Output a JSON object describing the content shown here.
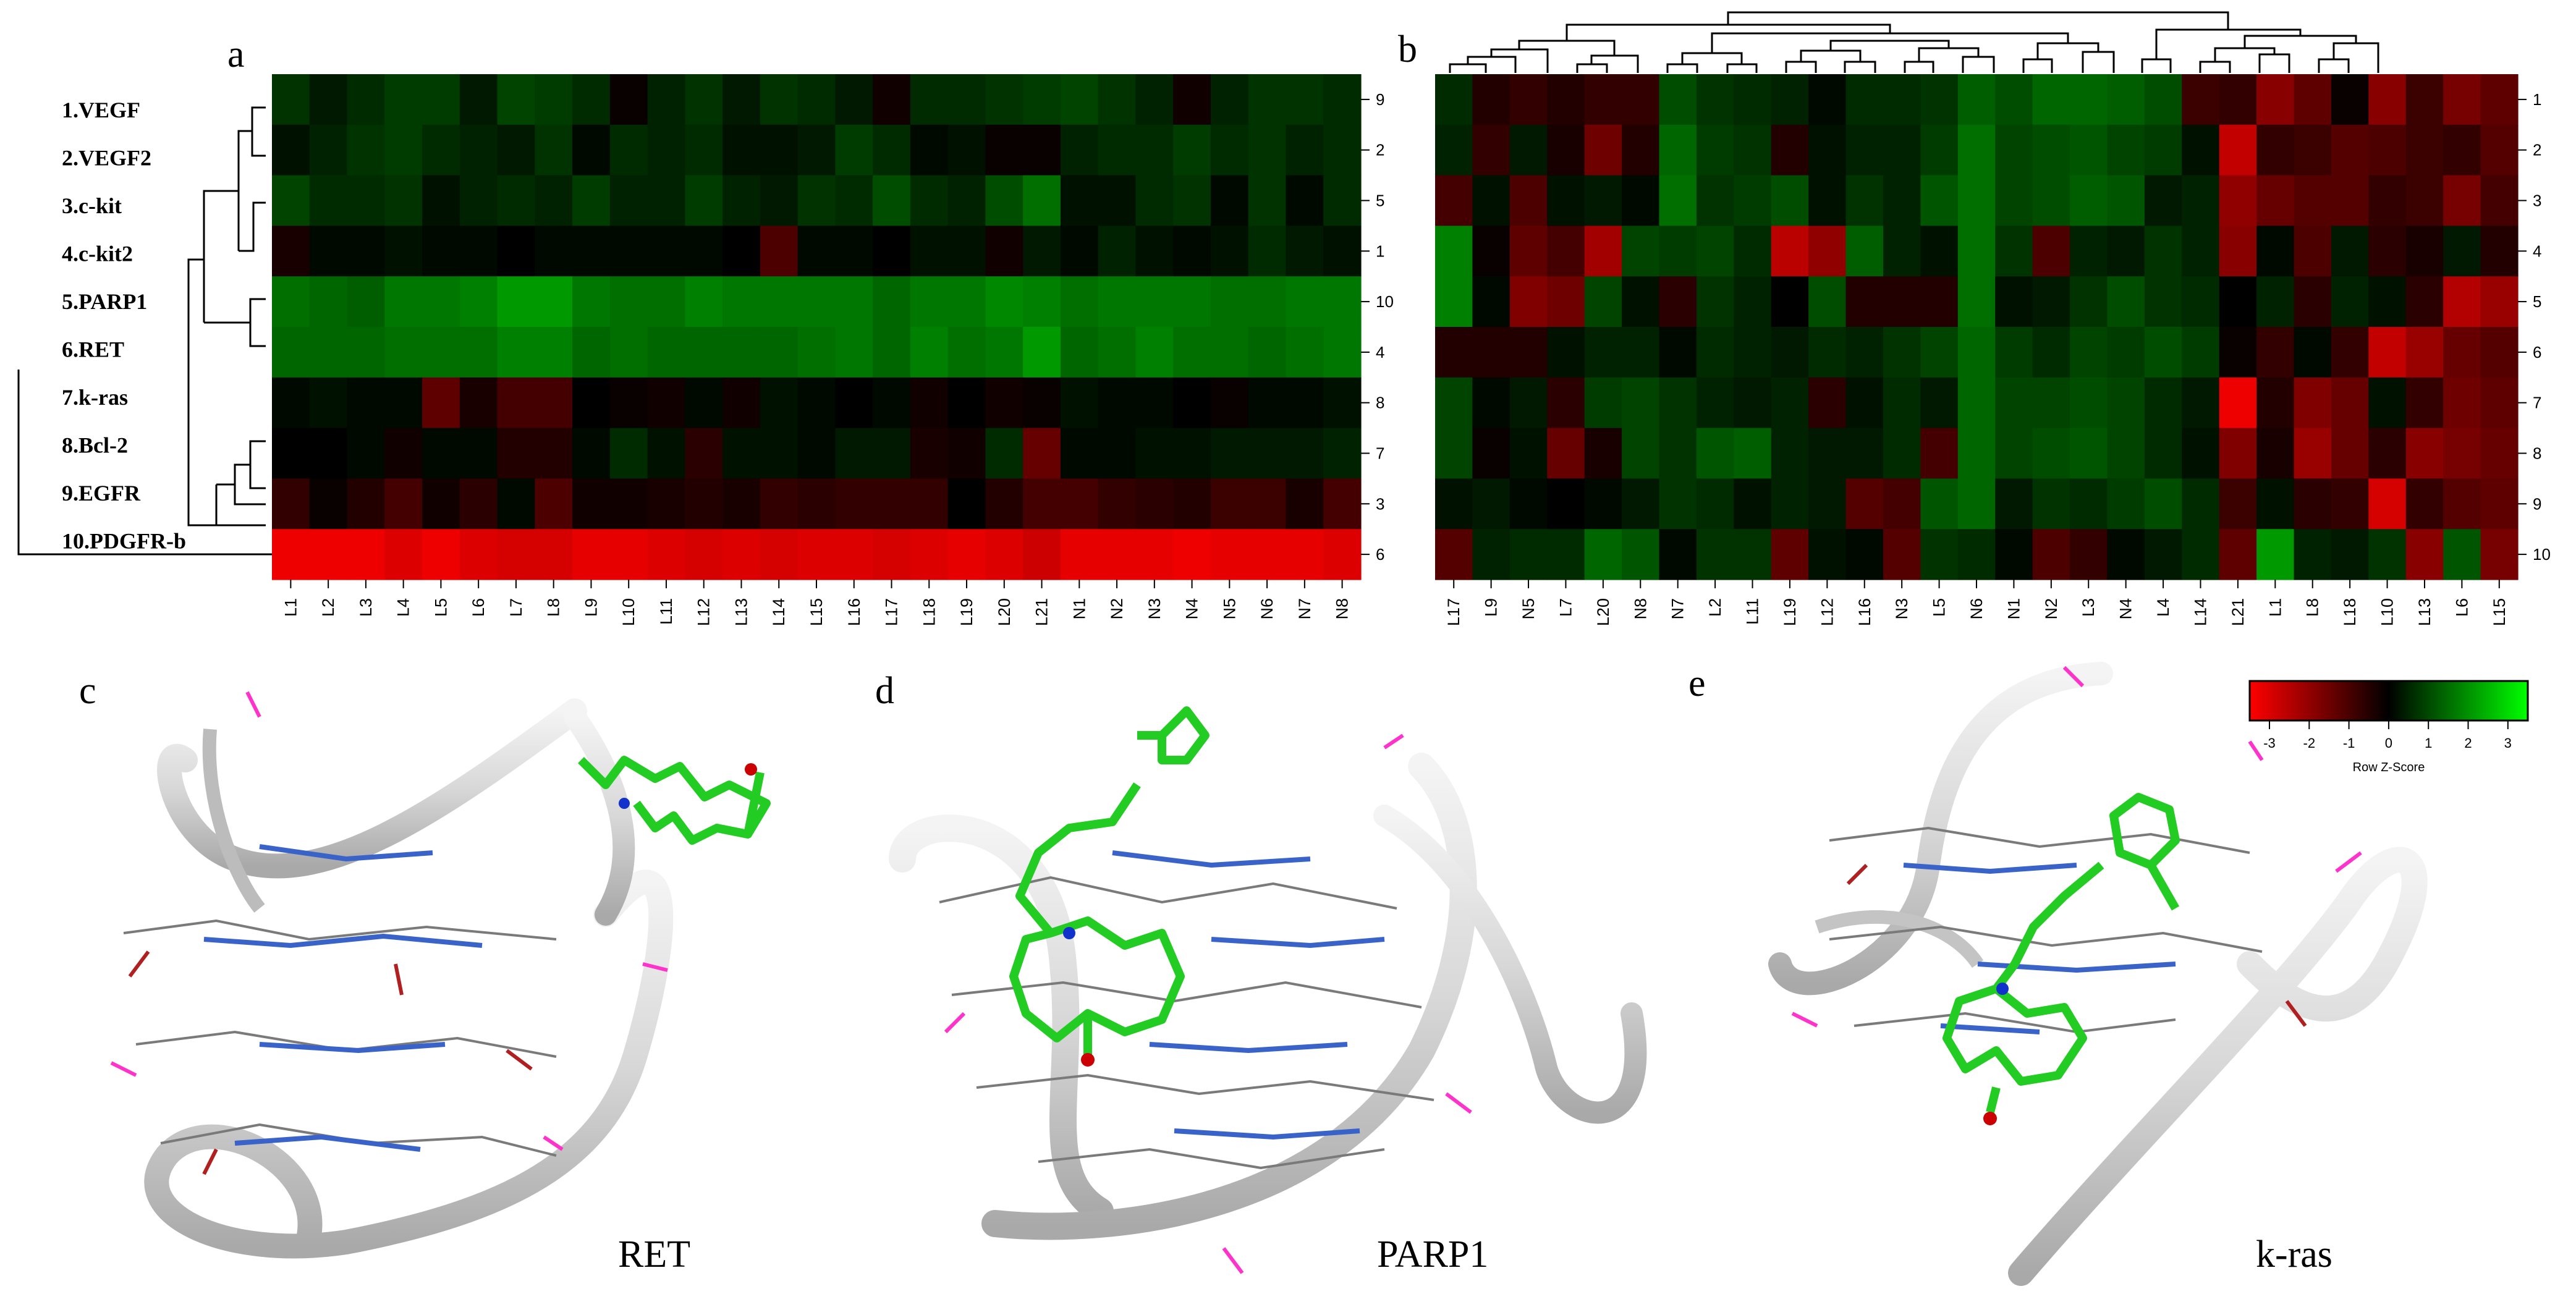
{
  "panels": {
    "a": {
      "letter": "a",
      "labels": [
        "1.VEGF",
        "2.VEGF2",
        "3.c-kit",
        "4.c-kit2",
        "5.PARP1",
        "6.RET",
        "7.k-ras",
        "8.Bcl-2",
        "9.EGFR",
        "10.PDGFR-b"
      ],
      "row_ids": [
        "9",
        "2",
        "5",
        "1",
        "10",
        "4",
        "8",
        "7",
        "3",
        "6"
      ],
      "columns": [
        "L1",
        "L2",
        "L3",
        "L4",
        "L5",
        "L6",
        "L7",
        "L8",
        "L9",
        "L10",
        "L11",
        "L12",
        "L13",
        "L14",
        "L15",
        "L16",
        "L17",
        "L18",
        "L19",
        "L20",
        "L21",
        "N1",
        "N2",
        "N3",
        "N4",
        "N5",
        "N6",
        "N7",
        "N8"
      ],
      "heat": [
        [
          0.6,
          0.3,
          0.5,
          0.7,
          0.7,
          0.3,
          0.8,
          0.7,
          0.5,
          -0.1,
          0.4,
          0.6,
          0.3,
          0.6,
          0.5,
          0.3,
          -0.2,
          0.5,
          0.5,
          0.6,
          0.7,
          0.8,
          0.6,
          0.4,
          -0.2,
          0.4,
          0.6,
          0.6,
          0.5
        ],
        [
          0.2,
          0.4,
          0.6,
          0.7,
          0.5,
          0.4,
          0.3,
          0.6,
          0.1,
          0.5,
          0.4,
          0.5,
          0.2,
          0.2,
          0.3,
          0.7,
          0.5,
          0.1,
          0.2,
          -0.1,
          -0.1,
          0.4,
          0.5,
          0.5,
          0.7,
          0.5,
          0.6,
          0.4,
          0.5
        ],
        [
          0.8,
          0.5,
          0.5,
          0.6,
          0.2,
          0.4,
          0.5,
          0.4,
          0.7,
          0.4,
          0.4,
          0.7,
          0.4,
          0.3,
          0.6,
          0.5,
          0.9,
          0.5,
          0.4,
          0.9,
          1.3,
          0.2,
          0.2,
          0.5,
          0.6,
          0.1,
          0.6,
          0.1,
          0.5
        ],
        [
          -0.3,
          0.1,
          0.1,
          0.2,
          0.1,
          0.1,
          0.0,
          0.1,
          0.1,
          0.1,
          0.1,
          0.1,
          0.0,
          -0.9,
          0.1,
          0.1,
          0.0,
          0.2,
          0.2,
          -0.2,
          0.3,
          0.1,
          0.4,
          0.2,
          0.1,
          0.2,
          0.5,
          0.3,
          0.2
        ],
        [
          1.3,
          1.2,
          1.1,
          1.4,
          1.4,
          1.5,
          1.8,
          1.8,
          1.4,
          1.3,
          1.3,
          1.5,
          1.4,
          1.4,
          1.4,
          1.4,
          1.2,
          1.4,
          1.4,
          1.6,
          1.5,
          1.3,
          1.4,
          1.4,
          1.4,
          1.3,
          1.3,
          1.4,
          1.4
        ],
        [
          1.2,
          1.2,
          1.2,
          1.3,
          1.3,
          1.3,
          1.5,
          1.5,
          1.2,
          1.3,
          1.2,
          1.2,
          1.2,
          1.2,
          1.3,
          1.4,
          1.2,
          1.5,
          1.3,
          1.4,
          1.8,
          1.2,
          1.3,
          1.5,
          1.3,
          1.3,
          1.2,
          1.3,
          1.4
        ],
        [
          0.1,
          0.2,
          0.1,
          0.1,
          -1.1,
          -0.3,
          -0.8,
          -0.8,
          0.0,
          -0.1,
          -0.2,
          0.1,
          -0.2,
          0.2,
          0.1,
          0.0,
          0.1,
          -0.2,
          0.0,
          -0.2,
          -0.1,
          0.2,
          0.1,
          0.1,
          0.0,
          -0.1,
          0.1,
          0.1,
          0.2
        ],
        [
          0.0,
          0.0,
          0.1,
          -0.2,
          0.1,
          0.1,
          -0.4,
          -0.4,
          0.1,
          0.5,
          0.2,
          -0.5,
          0.2,
          0.2,
          0.1,
          0.3,
          0.3,
          -0.3,
          -0.2,
          0.5,
          -1.2,
          0.1,
          0.1,
          0.2,
          0.2,
          0.3,
          0.3,
          0.3,
          0.4
        ],
        [
          -0.6,
          -0.1,
          -0.4,
          -0.8,
          -0.2,
          -0.5,
          0.1,
          -0.9,
          -0.2,
          -0.2,
          -0.3,
          -0.4,
          -0.3,
          -0.6,
          -0.5,
          -0.6,
          -0.6,
          -0.6,
          0.0,
          -0.4,
          -0.8,
          -0.8,
          -0.6,
          -0.5,
          -0.4,
          -0.7,
          -0.7,
          -0.3,
          -0.8
        ],
        [
          -2.8,
          -2.8,
          -2.8,
          -2.6,
          -2.8,
          -2.6,
          -2.5,
          -2.5,
          -2.7,
          -2.7,
          -2.6,
          -2.5,
          -2.6,
          -2.5,
          -2.6,
          -2.6,
          -2.5,
          -2.6,
          -2.7,
          -2.6,
          -2.4,
          -2.7,
          -2.7,
          -2.7,
          -2.8,
          -2.7,
          -2.7,
          -2.7,
          -2.6
        ]
      ]
    },
    "b": {
      "letter": "b",
      "row_ids": [
        "1",
        "2",
        "3",
        "4",
        "5",
        "6",
        "7",
        "8",
        "9",
        "10"
      ],
      "columns": [
        "L17",
        "L9",
        "N5",
        "L7",
        "L20",
        "N8",
        "N7",
        "L2",
        "L11",
        "L19",
        "L12",
        "L16",
        "N3",
        "L5",
        "N6",
        "N1",
        "N2",
        "L3",
        "N4",
        "L4",
        "L14",
        "L21",
        "L1",
        "L8",
        "L18",
        "L10",
        "L13",
        "L6",
        "L15"
      ],
      "heat": [
        [
          0.5,
          -0.4,
          -0.6,
          -0.4,
          -0.6,
          -0.6,
          0.9,
          0.6,
          0.5,
          0.4,
          0.1,
          0.5,
          0.5,
          0.6,
          1.1,
          0.9,
          1.2,
          1.2,
          1.1,
          0.9,
          -0.7,
          -0.6,
          -1.6,
          -1.1,
          -0.1,
          -1.6,
          -0.7,
          -1.4,
          -1.1
        ],
        [
          0.4,
          -0.6,
          0.3,
          -0.3,
          -1.3,
          -0.4,
          1.2,
          0.7,
          0.6,
          -0.4,
          0.2,
          0.4,
          0.4,
          0.7,
          1.3,
          0.8,
          0.9,
          1.0,
          0.8,
          0.7,
          0.2,
          -2.3,
          -0.6,
          -0.7,
          -1.0,
          -0.9,
          -0.7,
          -0.6,
          -1.0
        ],
        [
          -0.8,
          0.2,
          -0.9,
          0.2,
          0.3,
          0.1,
          1.3,
          0.6,
          0.7,
          0.9,
          0.2,
          0.6,
          0.4,
          1.0,
          1.3,
          0.8,
          0.9,
          1.1,
          1.0,
          0.3,
          0.4,
          -1.7,
          -1.2,
          -1.0,
          -1.0,
          -0.6,
          -0.7,
          -1.4,
          -0.8
        ],
        [
          1.5,
          -0.1,
          -1.1,
          -0.8,
          -1.9,
          0.8,
          0.7,
          0.8,
          0.5,
          -2.2,
          -1.7,
          1.1,
          0.4,
          0.2,
          1.3,
          0.6,
          -0.9,
          0.4,
          0.3,
          0.6,
          0.4,
          -1.6,
          0.1,
          -0.9,
          0.3,
          -0.5,
          -0.3,
          0.3,
          -0.4
        ],
        [
          1.5,
          0.1,
          -1.5,
          -1.3,
          0.8,
          0.2,
          -0.5,
          0.6,
          0.4,
          0.0,
          0.9,
          -0.4,
          -0.4,
          -0.4,
          1.3,
          0.2,
          0.3,
          0.6,
          0.9,
          0.6,
          0.5,
          0.0,
          0.4,
          -0.5,
          0.4,
          0.2,
          -0.5,
          -2.1,
          -1.8
        ],
        [
          -0.4,
          -0.4,
          -0.4,
          0.2,
          0.4,
          0.4,
          0.1,
          0.5,
          0.4,
          0.3,
          0.5,
          0.4,
          0.6,
          0.8,
          1.2,
          0.7,
          0.5,
          0.8,
          0.7,
          0.9,
          0.7,
          -0.1,
          -0.6,
          0.1,
          -0.6,
          -2.3,
          -1.8,
          -1.2,
          -1.0
        ],
        [
          0.8,
          0.1,
          0.3,
          -0.5,
          0.7,
          0.8,
          0.6,
          0.4,
          0.3,
          0.4,
          -0.5,
          0.2,
          0.5,
          0.3,
          1.2,
          0.8,
          0.8,
          0.9,
          0.8,
          0.5,
          0.3,
          -2.8,
          -0.4,
          -1.5,
          -1.2,
          0.2,
          -0.6,
          -1.3,
          -1.1
        ],
        [
          0.8,
          -0.1,
          0.2,
          -1.2,
          -0.3,
          0.8,
          0.6,
          1.0,
          1.1,
          0.4,
          0.3,
          0.3,
          0.5,
          -0.8,
          1.2,
          0.8,
          0.9,
          1.0,
          0.8,
          0.5,
          0.2,
          -1.5,
          -0.3,
          -1.8,
          -1.2,
          -0.5,
          -1.6,
          -1.4,
          -1.2
        ],
        [
          0.2,
          0.3,
          0.1,
          0.0,
          0.1,
          0.3,
          0.6,
          0.5,
          0.2,
          0.4,
          0.3,
          -1.0,
          -0.8,
          1.0,
          1.2,
          0.3,
          0.6,
          0.5,
          0.7,
          0.9,
          0.5,
          -0.7,
          0.2,
          -0.5,
          -0.6,
          -2.5,
          -0.6,
          -1.0,
          -1.1
        ],
        [
          -1.0,
          0.4,
          0.5,
          0.5,
          1.2,
          1.0,
          0.1,
          0.6,
          0.6,
          -1.1,
          0.2,
          0.1,
          -1.0,
          0.6,
          0.5,
          0.1,
          -0.9,
          -0.6,
          0.1,
          0.3,
          0.5,
          -1.1,
          1.8,
          0.4,
          0.3,
          0.6,
          -1.6,
          1.0,
          -1.4
        ]
      ]
    },
    "c": {
      "letter": "c",
      "caption": "RET"
    },
    "d": {
      "letter": "d",
      "caption": "PARP1"
    },
    "e": {
      "letter": "e",
      "caption": "k-ras"
    }
  },
  "colorkey": {
    "title": "Row Z-Score",
    "ticks": [
      "-3",
      "-2",
      "-1",
      "0",
      "1",
      "2",
      "3"
    ],
    "low_color": "#ff0000",
    "mid_color": "#000000",
    "high_color": "#00ff00"
  }
}
